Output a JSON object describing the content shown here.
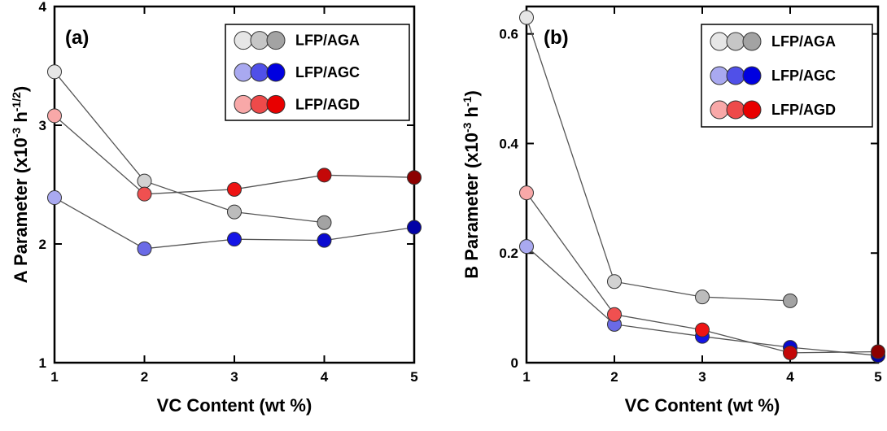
{
  "chart_data": [
    {
      "type": "line",
      "panel_label": "(a)",
      "xlabel": "VC Content (wt %)",
      "ylabel": "A Parameter (x10",
      "ylabel_exp1": "-3",
      "ylabel_mid": " h",
      "ylabel_exp2": "-1/2",
      "ylabel_end": ")",
      "xlim": [
        1,
        5
      ],
      "ylim": [
        1,
        4
      ],
      "x_ticks": [
        "1",
        "2",
        "3",
        "4",
        "5"
      ],
      "y_ticks": [
        "1",
        "2",
        "3",
        "4"
      ],
      "y_tick_values": [
        1,
        2,
        3,
        4
      ],
      "legend_position": "top-right",
      "series": [
        {
          "name": "LFP/AGA",
          "x": [
            1,
            2,
            3,
            4
          ],
          "values": [
            3.45,
            2.53,
            2.27,
            2.18
          ],
          "point_colors": [
            "#e6e6e6",
            "#d2d2d2",
            "#bcbcbc",
            "#a3a3a3"
          ],
          "legend_colors": [
            "#e6e6e6",
            "#c6c6c6",
            "#a3a3a3"
          ]
        },
        {
          "name": "LFP/AGC",
          "x": [
            1,
            2,
            3,
            4,
            5
          ],
          "values": [
            2.39,
            1.96,
            2.04,
            2.03,
            2.14
          ],
          "point_colors": [
            "#a9a9f0",
            "#6a6ae6",
            "#1414e6",
            "#0a0ad0",
            "#0202a6"
          ],
          "legend_colors": [
            "#a9a9f0",
            "#5050e8",
            "#0000e0"
          ]
        },
        {
          "name": "LFP/AGD",
          "x": [
            1,
            2,
            3,
            4,
            5
          ],
          "values": [
            3.08,
            2.42,
            2.46,
            2.58,
            2.56
          ],
          "point_colors": [
            "#f8a8a8",
            "#f05050",
            "#ee1414",
            "#c40808",
            "#8c0000"
          ],
          "legend_colors": [
            "#f8a8a8",
            "#ee4a4a",
            "#e80000"
          ]
        }
      ]
    },
    {
      "type": "line",
      "panel_label": "(b)",
      "xlabel": "VC Content (wt %)",
      "ylabel": "B Parameter (x10",
      "ylabel_exp1": "-3",
      "ylabel_mid": " h",
      "ylabel_exp2": "-1",
      "ylabel_end": ")",
      "xlim": [
        1,
        5
      ],
      "ylim": [
        0,
        0.65
      ],
      "x_ticks": [
        "1",
        "2",
        "3",
        "4",
        "5"
      ],
      "y_ticks": [
        "0",
        "0.2",
        "0.4",
        "0.6"
      ],
      "y_tick_values": [
        0,
        0.2,
        0.4,
        0.6
      ],
      "legend_position": "top-right",
      "series": [
        {
          "name": "LFP/AGA",
          "x": [
            1,
            2,
            3,
            4
          ],
          "values": [
            0.63,
            0.148,
            0.12,
            0.113
          ],
          "point_colors": [
            "#e6e6e6",
            "#d2d2d2",
            "#bcbcbc",
            "#a3a3a3"
          ],
          "legend_colors": [
            "#e6e6e6",
            "#c6c6c6",
            "#a3a3a3"
          ]
        },
        {
          "name": "LFP/AGC",
          "x": [
            1,
            2,
            3,
            4,
            5
          ],
          "values": [
            0.212,
            0.07,
            0.048,
            0.028,
            0.013
          ],
          "point_colors": [
            "#a9a9f0",
            "#6a6ae6",
            "#1414e6",
            "#0a0ad0",
            "#0202a6"
          ],
          "legend_colors": [
            "#a9a9f0",
            "#5050e8",
            "#0000e0"
          ]
        },
        {
          "name": "LFP/AGD",
          "x": [
            1,
            2,
            3,
            4,
            5
          ],
          "values": [
            0.31,
            0.088,
            0.06,
            0.018,
            0.02
          ],
          "point_colors": [
            "#f8a8a8",
            "#f05050",
            "#ee1414",
            "#c40808",
            "#8c0000"
          ],
          "legend_colors": [
            "#f8a8a8",
            "#ee4a4a",
            "#e80000"
          ]
        }
      ]
    }
  ]
}
